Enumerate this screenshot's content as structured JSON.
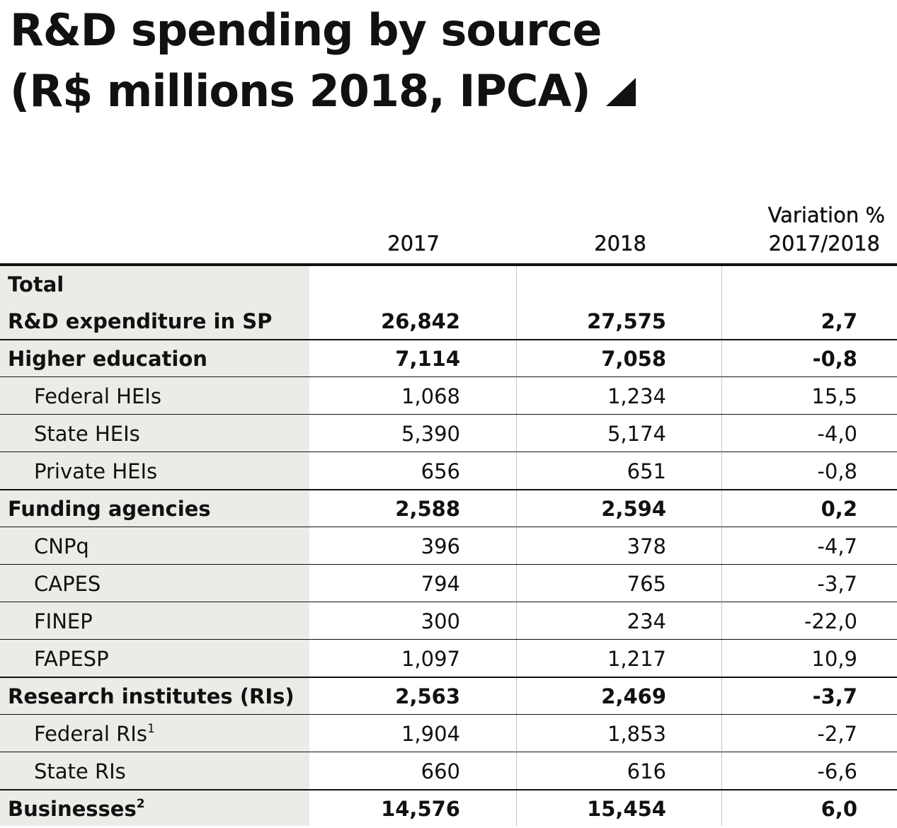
{
  "title": {
    "line1": "R&D spending by source",
    "line2": "(R$ millions 2018, IPCA)"
  },
  "header": {
    "col1": "2017",
    "col2": "2018",
    "col3_line1": "Variation %",
    "col3_line2": "2017/2018"
  },
  "total": {
    "label_line1": "Total",
    "label_line2": "R&D expenditure in SP",
    "v2017": "26,842",
    "v2018": "27,575",
    "variation": "2,7"
  },
  "rows": [
    {
      "label": "Higher education",
      "sup": "",
      "v2017": "7,114",
      "v2018": "7,058",
      "variation": "-0,8",
      "bold": true
    },
    {
      "label": "Federal HEIs",
      "sup": "",
      "v2017": "1,068",
      "v2018": "1,234",
      "variation": "15,5",
      "bold": false
    },
    {
      "label": "State HEIs",
      "sup": "",
      "v2017": "5,390",
      "v2018": "5,174",
      "variation": "-4,0",
      "bold": false
    },
    {
      "label": "Private HEIs",
      "sup": "",
      "v2017": "656",
      "v2018": "651",
      "variation": "-0,8",
      "bold": false
    },
    {
      "label": "Funding agencies",
      "sup": "",
      "v2017": "2,588",
      "v2018": "2,594",
      "variation": "0,2",
      "bold": true
    },
    {
      "label": "CNPq",
      "sup": "",
      "v2017": "396",
      "v2018": "378",
      "variation": "-4,7",
      "bold": false
    },
    {
      "label": "CAPES",
      "sup": "",
      "v2017": "794",
      "v2018": "765",
      "variation": "-3,7",
      "bold": false
    },
    {
      "label": "FINEP",
      "sup": "",
      "v2017": "300",
      "v2018": "234",
      "variation": "-22,0",
      "bold": false
    },
    {
      "label": "FAPESP",
      "sup": "",
      "v2017": "1,097",
      "v2018": "1,217",
      "variation": "10,9",
      "bold": false
    },
    {
      "label": "Research institutes (RIs)",
      "sup": "",
      "v2017": "2,563",
      "v2018": "2,469",
      "variation": "-3,7",
      "bold": true
    },
    {
      "label": "Federal RIs",
      "sup": "1",
      "v2017": "1,904",
      "v2018": "1,853",
      "variation": "-2,7",
      "bold": false
    },
    {
      "label": "State RIs",
      "sup": "",
      "v2017": "660",
      "v2018": "616",
      "variation": "-6,6",
      "bold": false
    },
    {
      "label": "Businesses",
      "sup": "2",
      "v2017": "14,576",
      "v2018": "15,454",
      "variation": "6,0",
      "bold": true
    }
  ],
  "colors": {
    "label_column_bg": "#ecebe7",
    "text": "#111111",
    "rule": "#111111"
  },
  "icons": {
    "title_marker": "triangle-corner-icon"
  }
}
